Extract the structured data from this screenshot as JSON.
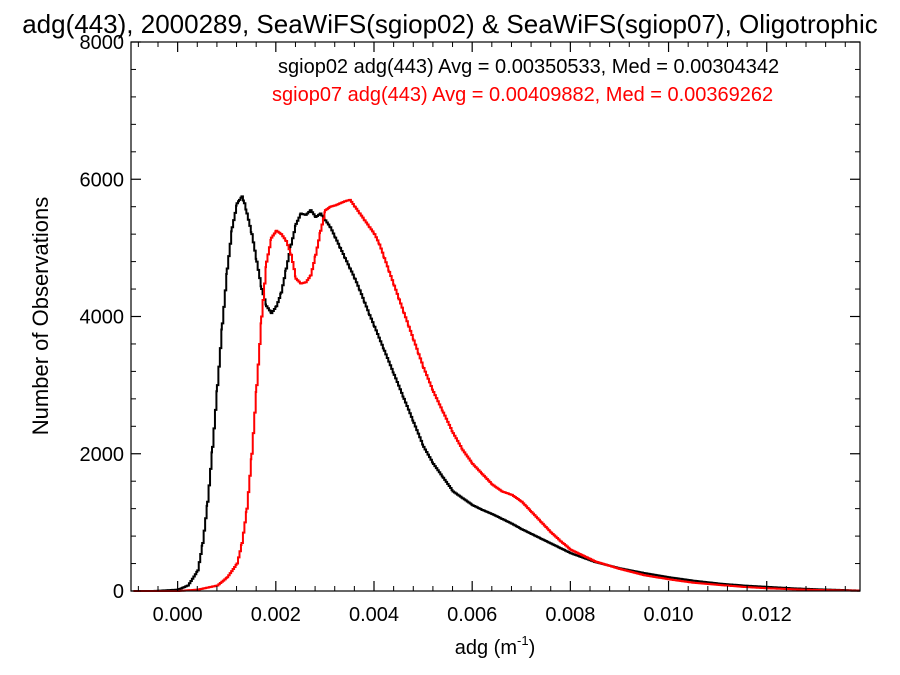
{
  "chart_data": {
    "type": "line",
    "title": "adg(443), 2000289, SeaWiFS(sgiop02) & SeaWiFS(sgiop07), Oligotrophic",
    "xlabel": "adg (m",
    "xlabel_sup": "-1",
    "xlabel_close": ")",
    "ylabel": "Number of Observations",
    "xlim": [
      -0.00095,
      0.0139
    ],
    "ylim": [
      0,
      8000
    ],
    "x_ticks": [
      0.0,
      0.002,
      0.004,
      0.006,
      0.008,
      0.01,
      0.012
    ],
    "x_tick_labels": [
      "0.000",
      "0.002",
      "0.004",
      "0.006",
      "0.008",
      "0.010",
      "0.012"
    ],
    "y_ticks": [
      0,
      2000,
      4000,
      6000,
      8000
    ],
    "y_tick_labels": [
      "0",
      "2000",
      "4000",
      "6000",
      "8000"
    ],
    "grid": false,
    "step": true,
    "annotations": [
      "sgiop02 adg(443) Avg = 0.00350533, Med = 0.00304342",
      "sgiop07 adg(443) Avg = 0.00409882, Med = 0.00369262"
    ],
    "series": [
      {
        "name": "sgiop02",
        "color": "#000000",
        "x": [
          -0.0009,
          -0.0005,
          0.0,
          0.0002,
          0.0004,
          0.0005,
          0.0006,
          0.0007,
          0.0008,
          0.0009,
          0.001,
          0.0011,
          0.0012,
          0.00125,
          0.0013,
          0.00135,
          0.0014,
          0.0015,
          0.0016,
          0.0017,
          0.0018,
          0.0019,
          0.002,
          0.0021,
          0.0022,
          0.0023,
          0.0024,
          0.0025,
          0.0026,
          0.0027,
          0.0028,
          0.0029,
          0.003,
          0.0031,
          0.0032,
          0.0033,
          0.0034,
          0.0035,
          0.0036,
          0.0037,
          0.0038,
          0.0039,
          0.004,
          0.0042,
          0.0044,
          0.0046,
          0.0048,
          0.005,
          0.0052,
          0.0054,
          0.0056,
          0.0058,
          0.006,
          0.0062,
          0.0064,
          0.0066,
          0.0068,
          0.007,
          0.0072,
          0.0074,
          0.0076,
          0.0078,
          0.008,
          0.0085,
          0.009,
          0.0095,
          0.01,
          0.0105,
          0.011,
          0.0115,
          0.012,
          0.0125,
          0.013,
          0.0135,
          0.0139
        ],
        "y": [
          0,
          0,
          20,
          80,
          300,
          700,
          1300,
          2100,
          3000,
          3900,
          4700,
          5300,
          5650,
          5700,
          5750,
          5650,
          5500,
          5200,
          4800,
          4400,
          4150,
          4050,
          4150,
          4350,
          4700,
          5050,
          5350,
          5500,
          5480,
          5550,
          5450,
          5500,
          5400,
          5300,
          5150,
          5000,
          4850,
          4700,
          4550,
          4380,
          4200,
          4020,
          3850,
          3500,
          3150,
          2800,
          2450,
          2100,
          1850,
          1650,
          1450,
          1350,
          1250,
          1180,
          1120,
          1050,
          980,
          900,
          830,
          760,
          690,
          620,
          550,
          420,
          330,
          260,
          200,
          150,
          110,
          80,
          60,
          40,
          25,
          15,
          5
        ]
      },
      {
        "name": "sgiop07",
        "color": "#ff0000",
        "x": [
          -0.0009,
          -0.0005,
          0.0,
          0.0004,
          0.0008,
          0.001,
          0.0012,
          0.0013,
          0.0014,
          0.0015,
          0.0016,
          0.0017,
          0.0018,
          0.0019,
          0.002,
          0.0021,
          0.0022,
          0.0023,
          0.0024,
          0.0025,
          0.0026,
          0.0027,
          0.0028,
          0.0029,
          0.003,
          0.0031,
          0.0032,
          0.0033,
          0.0034,
          0.0035,
          0.0036,
          0.0037,
          0.0038,
          0.0039,
          0.004,
          0.0041,
          0.0042,
          0.0043,
          0.0044,
          0.0045,
          0.0046,
          0.0047,
          0.0048,
          0.0049,
          0.005,
          0.0052,
          0.0054,
          0.0056,
          0.0058,
          0.006,
          0.0062,
          0.0064,
          0.0066,
          0.0068,
          0.007,
          0.0072,
          0.0074,
          0.0076,
          0.0078,
          0.008,
          0.0085,
          0.009,
          0.0095,
          0.01,
          0.0105,
          0.011,
          0.0115,
          0.012,
          0.0125,
          0.013,
          0.0135,
          0.0139
        ],
        "y": [
          0,
          0,
          0,
          20,
          80,
          200,
          400,
          700,
          1200,
          2000,
          3000,
          4000,
          4800,
          5150,
          5250,
          5200,
          5100,
          4900,
          4550,
          4480,
          4500,
          4600,
          4900,
          5250,
          5550,
          5600,
          5620,
          5650,
          5680,
          5700,
          5600,
          5500,
          5400,
          5300,
          5200,
          5050,
          4850,
          4650,
          4450,
          4250,
          4050,
          3850,
          3650,
          3450,
          3250,
          2900,
          2600,
          2300,
          2050,
          1850,
          1700,
          1550,
          1450,
          1400,
          1300,
          1150,
          1000,
          850,
          720,
          600,
          430,
          320,
          230,
          170,
          120,
          90,
          60,
          40,
          25,
          15,
          8,
          5
        ]
      }
    ]
  }
}
